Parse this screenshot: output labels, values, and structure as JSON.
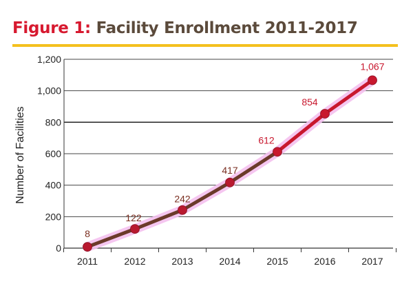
{
  "header": {
    "title_prefix": "Figure 1:",
    "title_main": "Facility Enrollment 2011-2017"
  },
  "colors": {
    "accent": "#d7192f",
    "rule": "#f4c01e",
    "line": "#c8182e",
    "shadow": "#6b3a2a",
    "glow": "#f4c0ee",
    "label_dark": "#7a2e20",
    "label_red": "#c8182e"
  },
  "chart_data": {
    "type": "line",
    "title": "Facility Enrollment 2011-2017",
    "xlabel": "",
    "ylabel": "Number of Facilities",
    "categories": [
      "2011",
      "2012",
      "2013",
      "2014",
      "2015",
      "2016",
      "2017"
    ],
    "series": [
      {
        "values": [
          8,
          122,
          242,
          417,
          612,
          854,
          1067
        ],
        "data_labels": [
          "8",
          "122",
          "242",
          "417",
          "612",
          "854",
          "1,067"
        ]
      }
    ],
    "ylim": [
      0,
      1200
    ],
    "yticks": [
      0,
      200,
      400,
      600,
      800,
      1000,
      1200
    ],
    "ytick_labels": [
      "0",
      "200",
      "400",
      "600",
      "800",
      "1,000",
      "1,200"
    ],
    "grid": true,
    "legend": "none"
  }
}
